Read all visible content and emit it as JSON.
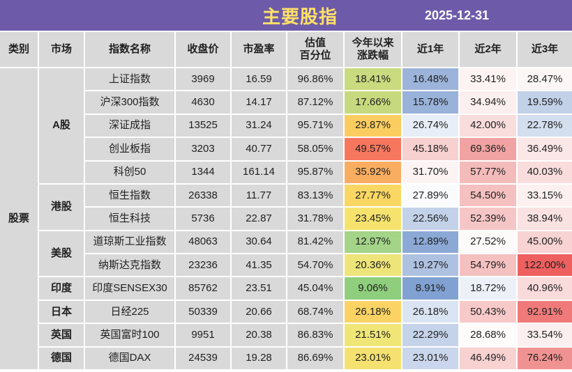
{
  "meta": {
    "title": "主要股指",
    "date": "2025-12-31"
  },
  "colors": {
    "header_bar": "#6D5BA9",
    "title_text": "#FFE266",
    "date_text": "#FFFFFF",
    "cell_bg": "#D9D9D9",
    "grid_line": "#FFFFFF",
    "text": "#1F1F1F"
  },
  "columns": [
    "类别",
    "市场",
    "指数名称",
    "收盘价",
    "市盈率",
    "估值\n百分位",
    "今年以来\n涨跌幅",
    "近1年",
    "近2年",
    "近3年"
  ],
  "category_label": "股票",
  "groups": [
    {
      "market": "A股",
      "span": 5
    },
    {
      "market": "港股",
      "span": 2
    },
    {
      "market": "美股",
      "span": 2
    },
    {
      "market": "印度",
      "span": 1
    },
    {
      "market": "日本",
      "span": 1
    },
    {
      "market": "英国",
      "span": 1
    },
    {
      "market": "德国",
      "span": 1
    }
  ],
  "rows": [
    {
      "name": "上证指数",
      "close": "3969",
      "pe": "16.59",
      "pct": "96.86%",
      "ytd": "18.41%",
      "y1": "16.48%",
      "y2": "33.41%",
      "y3": "28.47%",
      "bg": {
        "ytd": "#C9DA7F",
        "y1": "#9DB4DA",
        "y2": "#FDF3F3",
        "y3": "#FCF6F6"
      }
    },
    {
      "name": "沪深300指数",
      "close": "4630",
      "pe": "14.17",
      "pct": "87.12%",
      "ytd": "17.66%",
      "y1": "15.78%",
      "y2": "34.94%",
      "y3": "19.59%",
      "bg": {
        "ytd": "#C7D97E",
        "y1": "#99B2D9",
        "y2": "#FCEFEF",
        "y3": "#C2D1E8"
      }
    },
    {
      "name": "深证成指",
      "close": "13525",
      "pe": "31.24",
      "pct": "95.71%",
      "ytd": "29.87%",
      "y1": "26.74%",
      "y2": "42.00%",
      "y3": "22.78%",
      "bg": {
        "ytd": "#FBCD60",
        "y1": "#E8EEF7",
        "y2": "#F9DCDC",
        "y3": "#D3DEEF"
      }
    },
    {
      "name": "创业板指",
      "close": "3203",
      "pe": "40.77",
      "pct": "58.05%",
      "ytd": "49.57%",
      "y1": "45.18%",
      "y2": "69.36%",
      "y3": "36.49%",
      "bg": {
        "ytd": "#F7765E",
        "y1": "#F7D0D0",
        "y2": "#F1A2A2",
        "y3": "#FBE7E7"
      }
    },
    {
      "name": "科创50",
      "close": "1344",
      "pe": "161.14",
      "pct": "95.87%",
      "ytd": "35.92%",
      "y1": "31.70%",
      "y2": "57.77%",
      "y3": "40.03%",
      "bg": {
        "ytd": "#F9AD60",
        "y1": "#FCF3F3",
        "y2": "#F4BBBB",
        "y3": "#F9DDDD"
      }
    },
    {
      "name": "恒生指数",
      "close": "26338",
      "pe": "11.77",
      "pct": "83.13%",
      "ytd": "27.77%",
      "y1": "27.89%",
      "y2": "54.50%",
      "y3": "33.15%",
      "bg": {
        "ytd": "#FAD763",
        "y1": "#FAFBFD",
        "y2": "#F5C0C0",
        "y3": "#FCF0F0"
      }
    },
    {
      "name": "恒生科技",
      "close": "5736",
      "pe": "22.87",
      "pct": "31.78%",
      "ytd": "23.45%",
      "y1": "22.56%",
      "y2": "52.39%",
      "y3": "38.94%",
      "bg": {
        "ytd": "#F5E36E",
        "y1": "#C3D2E9",
        "y2": "#F6C6C6",
        "y3": "#FAE2E2"
      }
    },
    {
      "name": "道琼斯工业指数",
      "close": "48063",
      "pe": "30.64",
      "pct": "81.42%",
      "ytd": "12.97%",
      "y1": "12.89%",
      "y2": "27.52%",
      "y3": "45.00%",
      "bg": {
        "ytd": "#A4D488",
        "y1": "#8CA9D5",
        "y2": "#FDFAFA",
        "y3": "#F8D3D3"
      }
    },
    {
      "name": "纳斯达克指数",
      "close": "23236",
      "pe": "41.35",
      "pct": "54.70%",
      "ytd": "20.36%",
      "y1": "19.27%",
      "y2": "54.79%",
      "y3": "122.00%",
      "bg": {
        "ytd": "#EEE57A",
        "y1": "#AEC1E1",
        "y2": "#F5C0C0",
        "y3": "#EE5F5F"
      }
    },
    {
      "name": "印度SENSEX30",
      "close": "85762",
      "pe": "23.51",
      "pct": "45.04%",
      "ytd": "9.06%",
      "y1": "8.91%",
      "y2": "18.72%",
      "y3": "40.96%",
      "bg": {
        "ytd": "#8FCE7D",
        "y1": "#80A1D1",
        "y2": "#ECF1F8",
        "y3": "#F9DBDB"
      }
    },
    {
      "name": "日经225",
      "close": "50339",
      "pe": "20.66",
      "pct": "68.74%",
      "ytd": "26.18%",
      "y1": "26.18%",
      "y2": "50.43%",
      "y3": "92.91%",
      "bg": {
        "ytd": "#FAD364",
        "y1": "#DBE4F3",
        "y2": "#F7C9C9",
        "y3": "#F07A7A"
      }
    },
    {
      "name": "英国富时100",
      "close": "9951",
      "pe": "20.38",
      "pct": "86.83%",
      "ytd": "21.51%",
      "y1": "22.29%",
      "y2": "28.68%",
      "y3": "33.54%",
      "bg": {
        "ytd": "#F0E678",
        "y1": "#C5D3EA",
        "y2": "#FEFBFB",
        "y3": "#FCEFEF"
      }
    },
    {
      "name": "德国DAX",
      "close": "24539",
      "pe": "19.28",
      "pct": "86.69%",
      "ytd": "23.01%",
      "y1": "23.01%",
      "y2": "46.49%",
      "y3": "76.24%",
      "bg": {
        "ytd": "#F5E170",
        "y1": "#C9D6EB",
        "y2": "#F8D1D1",
        "y3": "#F19292"
      }
    }
  ],
  "chart_data": {
    "type": "table",
    "title": "主要股指",
    "date": "2025-12-31",
    "columns": [
      "类别",
      "市场",
      "指数名称",
      "收盘价",
      "市盈率",
      "估值百分位",
      "今年以来涨跌幅",
      "近1年",
      "近2年",
      "近3年"
    ],
    "rows": [
      [
        "股票",
        "A股",
        "上证指数",
        3969,
        16.59,
        "96.86%",
        "18.41%",
        "16.48%",
        "33.41%",
        "28.47%"
      ],
      [
        "股票",
        "A股",
        "沪深300指数",
        4630,
        14.17,
        "87.12%",
        "17.66%",
        "15.78%",
        "34.94%",
        "19.59%"
      ],
      [
        "股票",
        "A股",
        "深证成指",
        13525,
        31.24,
        "95.71%",
        "29.87%",
        "26.74%",
        "42.00%",
        "22.78%"
      ],
      [
        "股票",
        "A股",
        "创业板指",
        3203,
        40.77,
        "58.05%",
        "49.57%",
        "45.18%",
        "69.36%",
        "36.49%"
      ],
      [
        "股票",
        "A股",
        "科创50",
        1344,
        161.14,
        "95.87%",
        "35.92%",
        "31.70%",
        "57.77%",
        "40.03%"
      ],
      [
        "股票",
        "港股",
        "恒生指数",
        26338,
        11.77,
        "83.13%",
        "27.77%",
        "27.89%",
        "54.50%",
        "33.15%"
      ],
      [
        "股票",
        "港股",
        "恒生科技",
        5736,
        22.87,
        "31.78%",
        "23.45%",
        "22.56%",
        "52.39%",
        "38.94%"
      ],
      [
        "股票",
        "美股",
        "道琼斯工业指数",
        48063,
        30.64,
        "81.42%",
        "12.97%",
        "12.89%",
        "27.52%",
        "45.00%"
      ],
      [
        "股票",
        "美股",
        "纳斯达克指数",
        23236,
        41.35,
        "54.70%",
        "20.36%",
        "19.27%",
        "54.79%",
        "122.00%"
      ],
      [
        "股票",
        "印度",
        "印度SENSEX30",
        85762,
        23.51,
        "45.04%",
        "9.06%",
        "8.91%",
        "18.72%",
        "40.96%"
      ],
      [
        "股票",
        "日本",
        "日经225",
        50339,
        20.66,
        "68.74%",
        "26.18%",
        "26.18%",
        "50.43%",
        "92.91%"
      ],
      [
        "股票",
        "英国",
        "英国富时100",
        9951,
        20.38,
        "86.83%",
        "21.51%",
        "22.29%",
        "28.68%",
        "33.54%"
      ],
      [
        "股票",
        "德国",
        "德国DAX",
        24539,
        19.28,
        "86.69%",
        "23.01%",
        "23.01%",
        "46.49%",
        "76.24%"
      ]
    ]
  }
}
